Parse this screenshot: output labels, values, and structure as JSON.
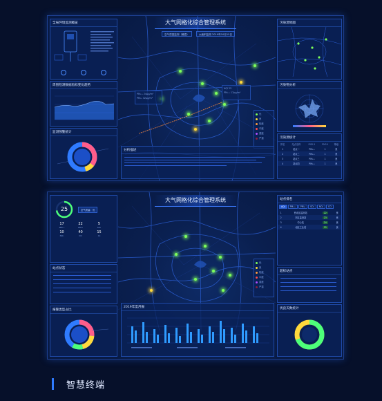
{
  "screen1": {
    "title": "大气网格化综合管理系统",
    "info": [
      "空气质量监测（最高）",
      "大面积监测 2019年10月15日"
    ],
    "left_panels": [
      {
        "title": "全局环境监测概览"
      },
      {
        "title": "周围检测数据指标变化趋势"
      },
      {
        "title": "监测预警统计"
      }
    ],
    "bottom_panel": {
      "title": "分析描述"
    },
    "right_panels": [
      {
        "title": "污染源地图"
      },
      {
        "title": "污染物分析"
      },
      {
        "title": "污染源统计"
      }
    ],
    "table": {
      "headers": [
        "排名",
        "站点名称",
        "PM2.5",
        "PM10",
        "等级"
      ],
      "rows": [
        [
          "1",
          "站点一",
          "PM₂.₅",
          "1",
          "良"
        ],
        [
          "2",
          "站点二",
          "PM₂.₅",
          "1",
          "良"
        ],
        [
          "3",
          "站点三",
          "PM₂.₅",
          "1",
          "良"
        ],
        [
          "4",
          "站点四",
          "PM₂.₅",
          "1",
          "良"
        ]
      ]
    }
  },
  "screen2": {
    "title": "大气网格化综合管理系统",
    "aqi_value": "25",
    "status_button": "空气质量：优",
    "pollutants": [
      {
        "value": "17",
        "name": "PM₂.₅"
      },
      {
        "value": "22",
        "name": "PM₁₀"
      },
      {
        "value": "5",
        "name": "SO₂"
      },
      {
        "value": "10",
        "name": "NO₂"
      },
      {
        "value": "40",
        "name": "CO"
      },
      {
        "value": "15",
        "name": "O₃"
      }
    ],
    "left_panels": [
      {
        "title": "站点状态"
      },
      {
        "title": "报警类型占比"
      }
    ],
    "bottom_panel": {
      "title": "2019年度月报"
    },
    "right_panels": [
      {
        "title": "站点排名"
      },
      {
        "title": "超标站点"
      },
      {
        "title": "优良天数统计"
      }
    ],
    "tabs": [
      "AQI",
      "PM₂.₅",
      "PM₁₀",
      "SO₂",
      "NO₂",
      "CO"
    ],
    "rank_rows": [
      [
        "1",
        "西北区监测站",
        "22",
        "良"
      ],
      [
        "2",
        "东区监测站",
        "23",
        "良"
      ],
      [
        "3",
        "中心站",
        "24",
        "良"
      ],
      [
        "4",
        "北区工业站",
        "25",
        "良"
      ]
    ]
  },
  "footer": {
    "label": "智慧终端"
  },
  "colors": {
    "accent": "#2f7bff",
    "green": "#7dff5a",
    "yellow": "#ffd93c"
  }
}
